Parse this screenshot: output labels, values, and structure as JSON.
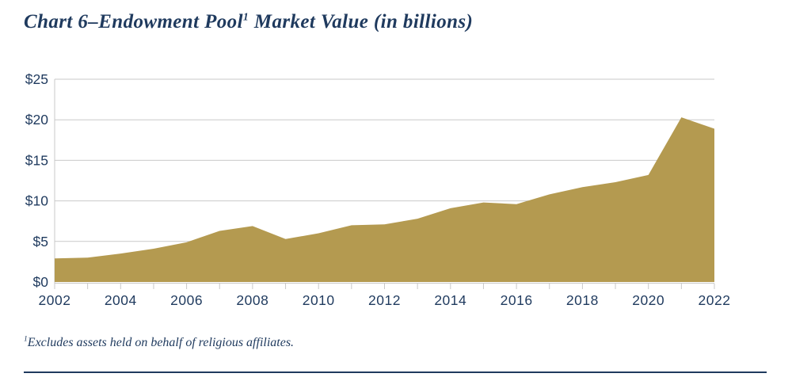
{
  "title": {
    "prefix": "Chart 6–Endowment Pool",
    "superscript": "1",
    "suffix": " Market Value (in billions)"
  },
  "footnote": {
    "superscript": "1",
    "text": "Excludes assets held on behalf of religious affiliates."
  },
  "colors": {
    "area_fill": "#b49a50",
    "navy_text": "#1f3a5e",
    "gridline": "#c9c9c9",
    "divider": "#1f3a5e"
  },
  "chart_data": {
    "type": "area",
    "title": "Chart 6–Endowment Pool Market Value (in billions)",
    "x": [
      2002,
      2003,
      2004,
      2005,
      2006,
      2007,
      2008,
      2009,
      2010,
      2011,
      2012,
      2013,
      2014,
      2015,
      2016,
      2017,
      2018,
      2019,
      2020,
      2021,
      2022
    ],
    "values": [
      2.9,
      3.0,
      3.5,
      4.1,
      4.9,
      6.3,
      6.9,
      5.3,
      6.0,
      7.0,
      7.1,
      7.8,
      9.1,
      9.8,
      9.6,
      10.8,
      11.7,
      12.3,
      13.2,
      20.3,
      18.9
    ],
    "x_tick_labels": [
      "2002",
      "2004",
      "2006",
      "2008",
      "2010",
      "2012",
      "2014",
      "2016",
      "2018",
      "2020",
      "2022"
    ],
    "y_tick_labels": [
      "$0",
      "$5",
      "$10",
      "$15",
      "$20",
      "$25"
    ],
    "ylim": [
      0,
      25
    ],
    "y_tick_step": 5,
    "xlabel": "",
    "ylabel": "",
    "grid": "horizontal-only",
    "legend": "none",
    "units": "billions USD"
  }
}
